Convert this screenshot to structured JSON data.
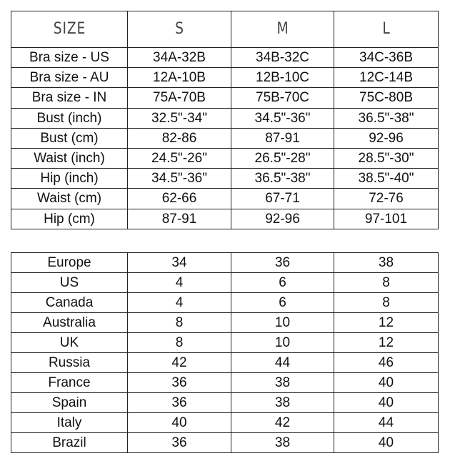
{
  "measurements": {
    "headers": [
      "SIZE",
      "S",
      "M",
      "L"
    ],
    "rows": [
      [
        "Bra size - US",
        "34A-32B",
        "34B-32C",
        "34C-36B"
      ],
      [
        "Bra size - AU",
        "12A-10B",
        "12B-10C",
        "12C-14B"
      ],
      [
        "Bra size - IN",
        "75A-70B",
        "75B-70C",
        "75C-80B"
      ],
      [
        "Bust (inch)",
        "32.5\"-34\"",
        "34.5\"-36\"",
        "36.5\"-38\""
      ],
      [
        "Bust (cm)",
        "82-86",
        "87-91",
        "92-96"
      ],
      [
        "Waist (inch)",
        "24.5\"-26\"",
        "26.5\"-28\"",
        "28.5\"-30\""
      ],
      [
        "Hip (inch)",
        "34.5\"-36\"",
        "36.5\"-38\"",
        "38.5\"-40\""
      ],
      [
        "Waist (cm)",
        "62-66",
        "67-71",
        "72-76"
      ],
      [
        "Hip (cm)",
        "87-91",
        "92-96",
        "97-101"
      ]
    ]
  },
  "conversions": {
    "rows": [
      [
        "Europe",
        "34",
        "36",
        "38"
      ],
      [
        "US",
        "4",
        "6",
        "8"
      ],
      [
        "Canada",
        "4",
        "6",
        "8"
      ],
      [
        "Australia",
        "8",
        "10",
        "12"
      ],
      [
        "UK",
        "8",
        "10",
        "12"
      ],
      [
        "Russia",
        "42",
        "44",
        "46"
      ],
      [
        "France",
        "36",
        "38",
        "40"
      ],
      [
        "Spain",
        "36",
        "38",
        "40"
      ],
      [
        "Italy",
        "40",
        "42",
        "44"
      ],
      [
        "Brazil",
        "36",
        "38",
        "40"
      ]
    ]
  }
}
